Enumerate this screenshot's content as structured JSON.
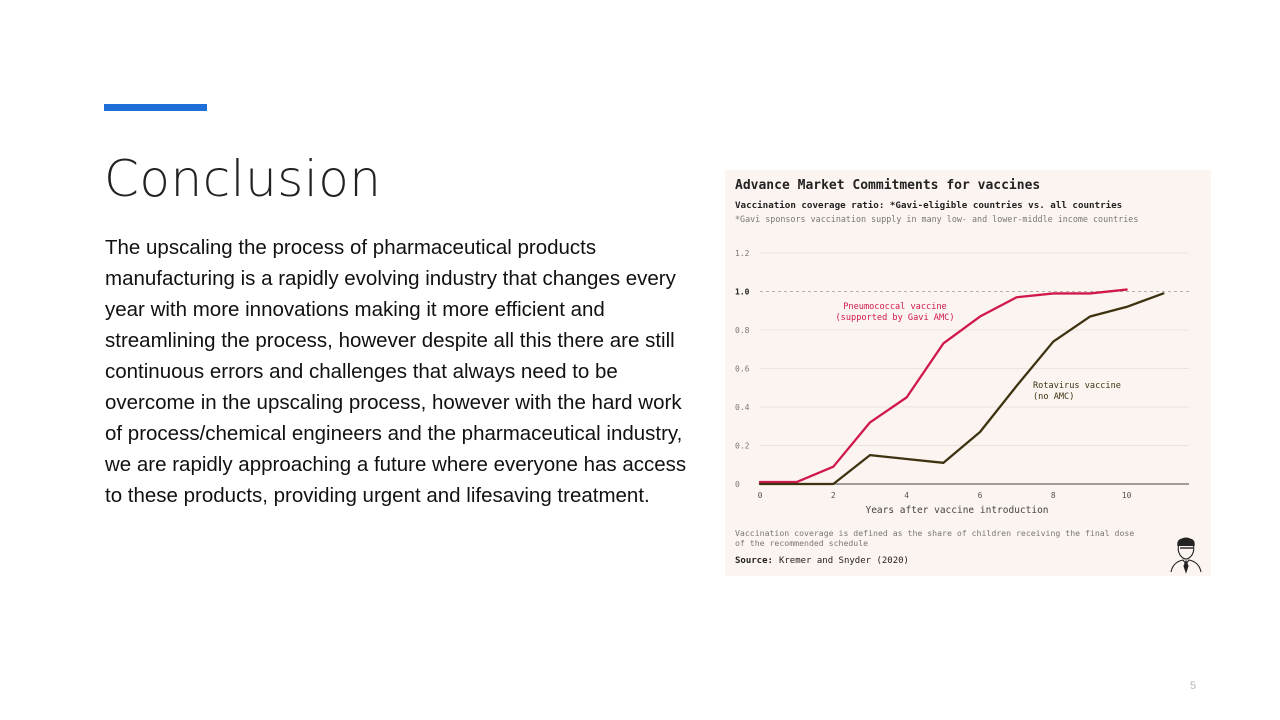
{
  "slide": {
    "title": "Conclusion",
    "body": "The upscaling the process of pharmaceutical products manufacturing is a rapidly evolving industry that changes every year with more innovations making it more efficient and streamlining the process, however despite all this there are still continuous errors and challenges that always need to be overcome in the upscaling process, however with the hard work of process/chemical engineers and the pharmaceutical industry, we are rapidly approaching a future where everyone has access to these products, providing urgent and lifesaving treatment.",
    "page_number": "5",
    "accent_color": "#1f6fd8"
  },
  "chart_data": {
    "type": "line",
    "title": "Advance Market Commitments for vaccines",
    "subtitle": "Vaccination coverage ratio: *Gavi-eligible countries vs. all countries",
    "note": "*Gavi sponsors vaccination supply in many low- and lower-middle income countries",
    "xlabel": "Years after vaccine introduction",
    "ylabel": "",
    "xlim": [
      0,
      11.7
    ],
    "ylim": [
      0,
      1.2
    ],
    "x_ticks": [
      "0",
      "2",
      "4",
      "6",
      "8",
      "10"
    ],
    "y_ticks": [
      "0",
      "0.2",
      "0.4",
      "0.6",
      "0.8",
      "1.0",
      "1.2"
    ],
    "reference_line": 1.0,
    "grid": true,
    "series": [
      {
        "name": "Pneumococcal vaccine (supported by Gavi AMC)",
        "label_lines": [
          "Pneumococcal vaccine",
          "(supported by Gavi AMC)"
        ],
        "color": "#d0184b",
        "x": [
          0,
          1,
          2,
          3,
          4,
          5,
          6,
          7,
          8,
          9,
          10
        ],
        "y": [
          0.01,
          0.01,
          0.09,
          0.32,
          0.45,
          0.73,
          0.87,
          0.97,
          0.99,
          0.99,
          1.01
        ]
      },
      {
        "name": "Rotavirus vaccine (no AMC)",
        "label_lines": [
          "Rotavirus vaccine",
          "(no AMC)"
        ],
        "color": "#3d3311",
        "x": [
          0,
          1,
          2,
          3,
          4,
          5,
          6,
          7,
          8,
          9,
          10,
          11
        ],
        "y": [
          0.0,
          0.0,
          0.0,
          0.15,
          0.13,
          0.11,
          0.27,
          0.51,
          0.74,
          0.87,
          0.92,
          0.99
        ]
      }
    ],
    "footnote_lines": [
      "Vaccination coverage is defined as the share of children receiving the final dose",
      "of the recommended schedule"
    ],
    "source_label": "Source:",
    "source": "Kremer and Snyder (2020)",
    "logo_icon": "portrait-sketch-icon"
  }
}
